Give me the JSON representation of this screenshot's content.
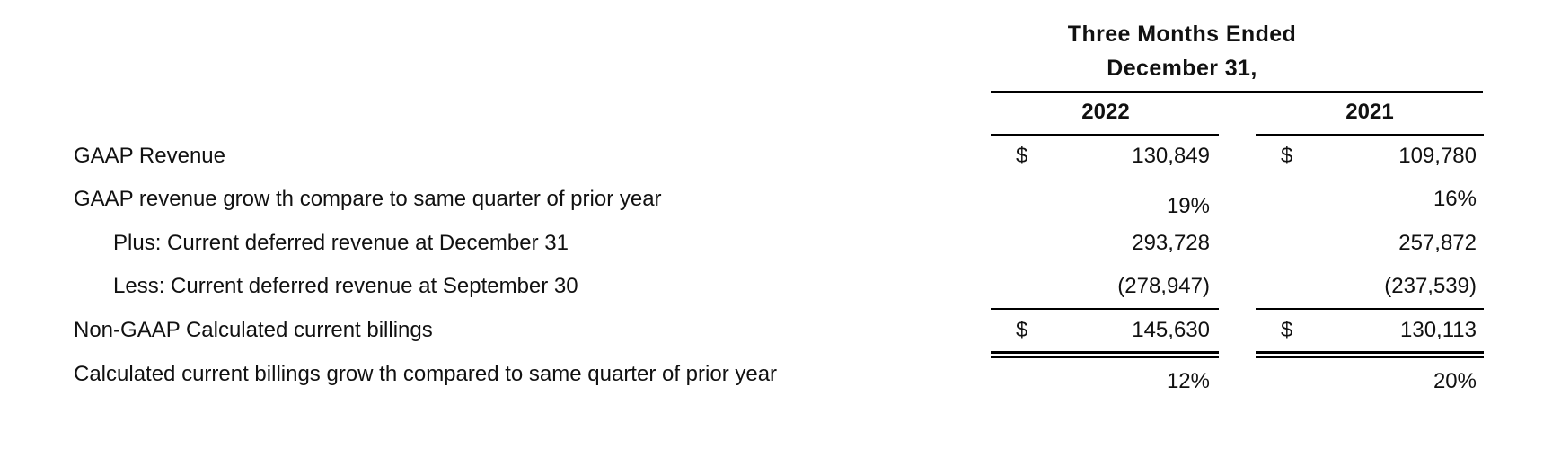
{
  "header": {
    "line1": "Three Months Ended",
    "line2": "December 31,"
  },
  "columns": [
    {
      "year": "2022"
    },
    {
      "year": "2021"
    }
  ],
  "rows": [
    {
      "label": "GAAP Revenue",
      "indent": false,
      "currency": "$",
      "values": [
        "130,849",
        "109,780"
      ]
    },
    {
      "label": "GAAP revenue grow th compare to same quarter of prior year",
      "indent": false,
      "currency": "",
      "values": [
        "19%",
        "16%"
      ]
    },
    {
      "label": "Plus: Current deferred revenue at December 31",
      "indent": true,
      "currency": "",
      "values": [
        "293,728",
        "257,872"
      ]
    },
    {
      "label": "Less: Current deferred revenue at September 30",
      "indent": true,
      "currency": "",
      "values": [
        "(278,947)",
        "(237,539)"
      ]
    },
    {
      "label": "Non-GAAP Calculated current billings",
      "indent": false,
      "currency": "$",
      "values": [
        "145,630",
        "130,113"
      ]
    },
    {
      "label": "Calculated current billings grow th compared to same quarter of prior year",
      "indent": false,
      "currency": "",
      "values": [
        "12%",
        "20%"
      ]
    }
  ]
}
